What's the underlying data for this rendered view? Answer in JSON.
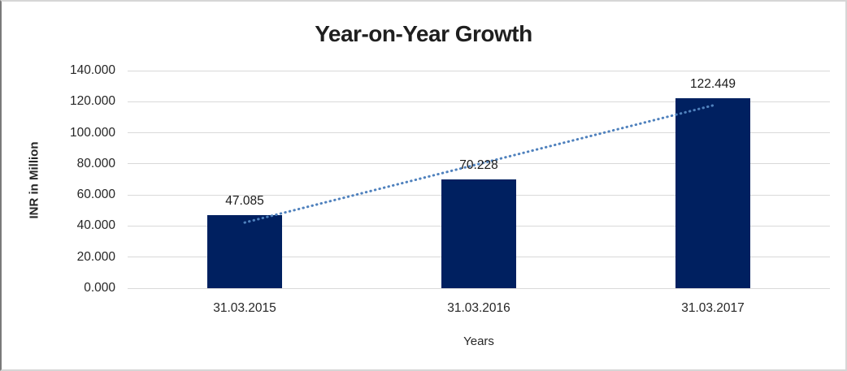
{
  "frame": {
    "background": "#ffffff",
    "border_color": "#d6d6d6",
    "border_left_color": "#7a7a7a"
  },
  "chart_data": {
    "type": "bar",
    "title": "Year-on-Year Growth",
    "xlabel": "Years",
    "ylabel": "INR in Million",
    "categories": [
      "31.03.2015",
      "31.03.2016",
      "31.03.2017"
    ],
    "values": [
      47.085,
      70.228,
      122.449
    ],
    "value_labels": [
      "47.085",
      "70.228",
      "122.449"
    ],
    "ylim": [
      0,
      140
    ],
    "ytick_step": 20,
    "ytick_labels": [
      "0.000",
      "20.000",
      "40.000",
      "60.000",
      "80.000",
      "100.000",
      "120.000",
      "140.000"
    ],
    "grid": true,
    "legend": false,
    "bar_color": "#002060",
    "gridline_color": "#d9d9d9",
    "trendline": {
      "type": "linear",
      "line_style": "dotted",
      "color": "#4F81BD"
    }
  }
}
